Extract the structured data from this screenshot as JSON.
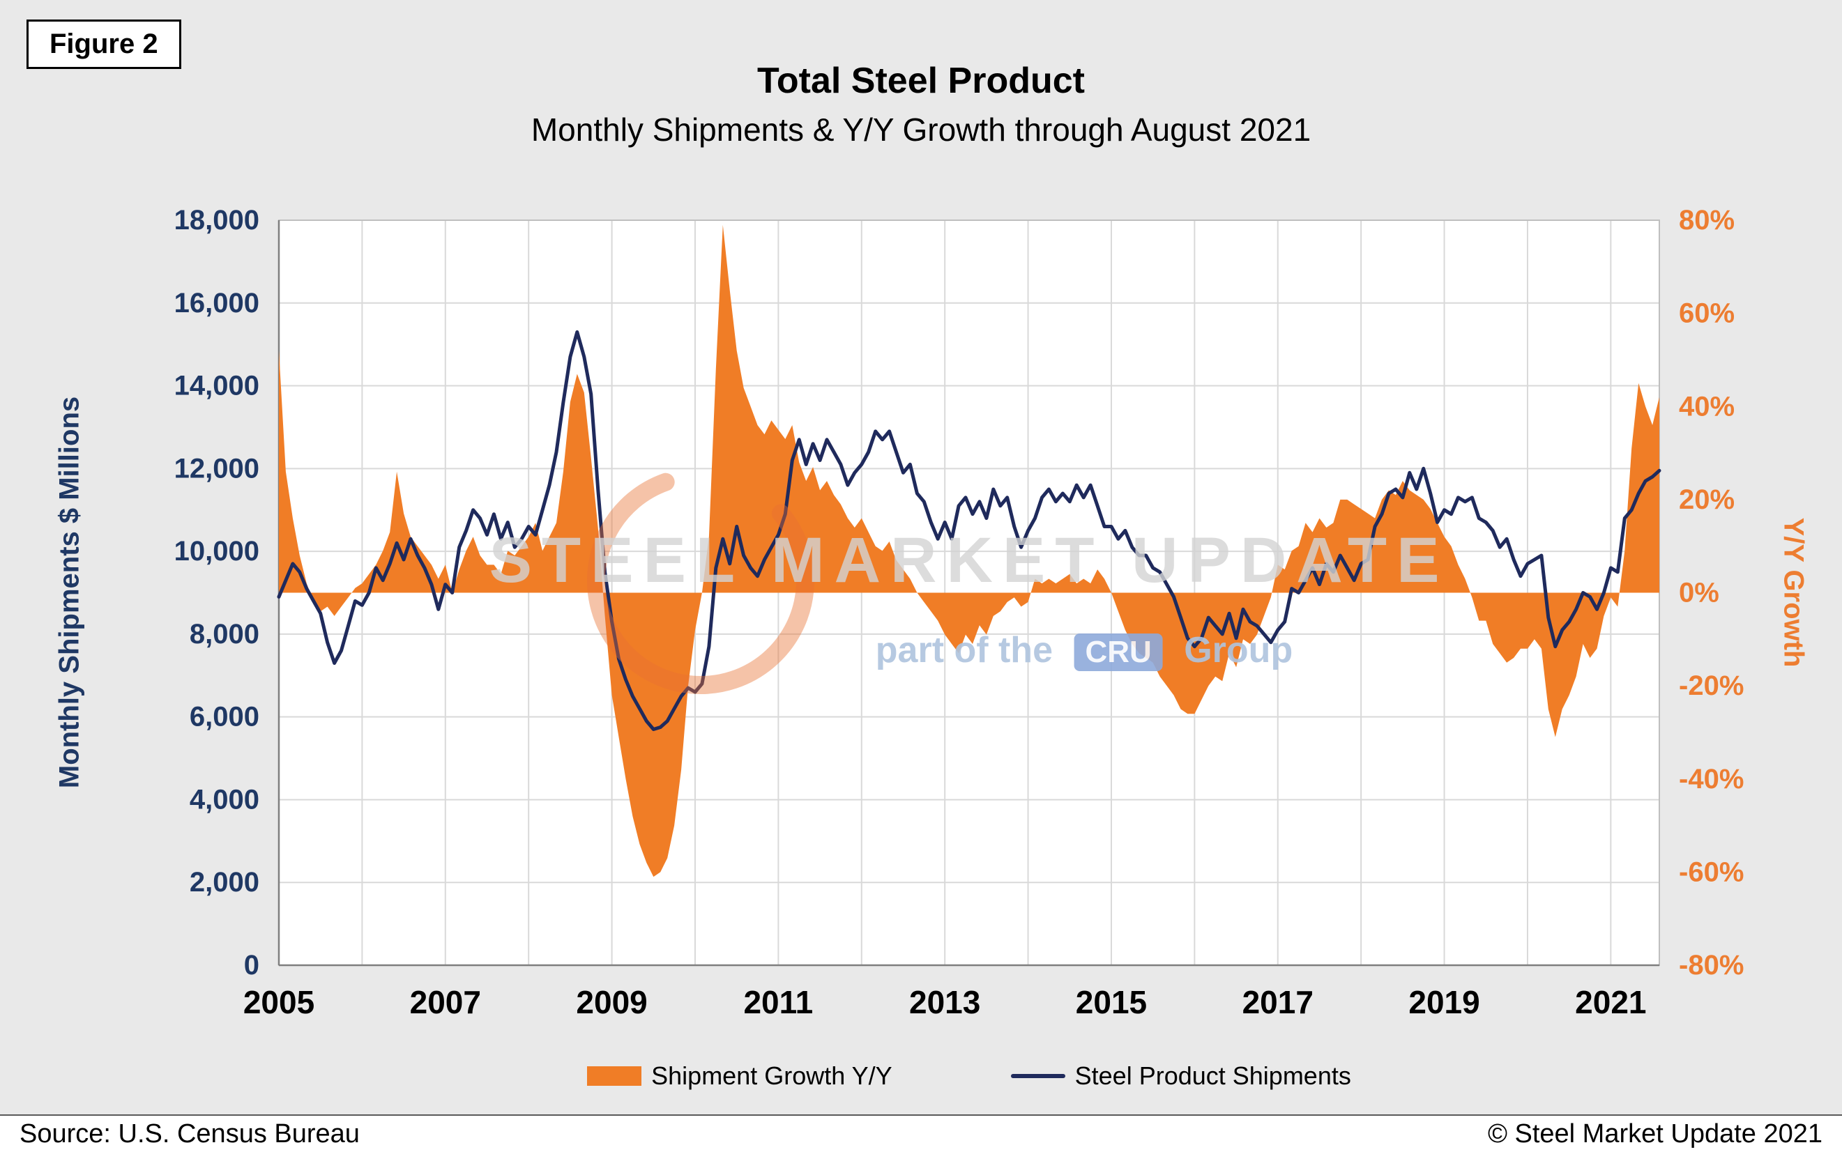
{
  "figure_label": "Figure 2",
  "header": {
    "title": "Total Steel Product",
    "subtitle": "Monthly Shipments & Y/Y Growth through August 2021"
  },
  "footer": {
    "source": "Source: U.S. Census Bureau",
    "copyright": "© Steel Market Update 2021"
  },
  "watermark": {
    "line1": "STEEL MARKET UPDATE",
    "line2_prefix": "part of the",
    "logo_text": "CRU",
    "line2_suffix": "Group"
  },
  "legend": [
    {
      "label": "Shipment Growth Y/Y"
    },
    {
      "label": "Steel Product Shipments"
    }
  ],
  "colors": {
    "orange": "#F07D26",
    "navy": "#1F2A5C",
    "axis_left_text": "#1F3864",
    "axis_right_text": "#ED7D31",
    "x_tick_text": "#000000",
    "grid": "#D9D9D9",
    "plot_border": "#BFBFBF",
    "axis_line": "#7F7F7F",
    "page_bg": "#E9E9E9",
    "plot_bg": "#FFFFFF"
  },
  "chart_data": {
    "type": "line",
    "title": "Total Steel Product",
    "subtitle": "Monthly Shipments & Y/Y Growth through August 2021",
    "x_start": "2005-01",
    "x_end": "2021-08",
    "x_tick_years": [
      2005,
      2007,
      2009,
      2011,
      2013,
      2015,
      2017,
      2019,
      2021
    ],
    "grid": "on",
    "legend_position": "bottom",
    "left_axis": {
      "label": "Monthly Shipments $ Millions",
      "min": 0,
      "max": 18000,
      "step": 2000
    },
    "right_axis": {
      "label": "Y/Y Growth",
      "min": -80,
      "max": 80,
      "step": 20,
      "unit": "%"
    },
    "series": [
      {
        "name": "Shipment Growth Y/Y",
        "type": "area",
        "axis": "right",
        "color": "#F07D26",
        "values": [
          52,
          26,
          16,
          8,
          2,
          -2,
          -4,
          -3,
          -5,
          -3,
          -1,
          1,
          2,
          4,
          6,
          9,
          13,
          26,
          17,
          12,
          10,
          8,
          6,
          3,
          6,
          0,
          5,
          9,
          12,
          8,
          6,
          6,
          4,
          9,
          8,
          10,
          12,
          15,
          9,
          12,
          15,
          26,
          41,
          47,
          43,
          29,
          14,
          -5,
          -22,
          -31,
          -40,
          -48,
          -54,
          -58,
          -61,
          -60,
          -57,
          -50,
          -38,
          -20,
          -8,
          0,
          12,
          48,
          79,
          65,
          52,
          44,
          40,
          36,
          34,
          37,
          35,
          33,
          36,
          28,
          24,
          27,
          22,
          24,
          21,
          19,
          16,
          14,
          16,
          13,
          10,
          9,
          11,
          7,
          5,
          3,
          0,
          -2,
          -4,
          -6,
          -9,
          -11,
          -13,
          -9,
          -11,
          -7,
          -9,
          -5,
          -4,
          -2,
          -1,
          -3,
          -2,
          3,
          2,
          3,
          2,
          3,
          4,
          2,
          3,
          2,
          5,
          3,
          0,
          -4,
          -8,
          -11,
          -13,
          -14,
          -15,
          -18,
          -20,
          -22,
          -25,
          -26,
          -26,
          -23,
          -20,
          -18,
          -19,
          -13,
          -16,
          -10,
          -11,
          -9,
          -5,
          -1,
          6,
          5,
          9,
          10,
          15,
          13,
          16,
          14,
          15,
          20,
          20,
          19,
          18,
          17,
          16,
          20,
          22,
          21,
          24,
          22,
          21,
          20,
          18,
          15,
          12,
          10,
          6,
          3,
          -1,
          -6,
          -6,
          -11,
          -13,
          -15,
          -14,
          -12,
          -12,
          -10,
          -12,
          -25,
          -31,
          -25,
          -22,
          -18,
          -11,
          -14,
          -12,
          -5,
          -1,
          -3,
          9,
          31,
          45,
          40,
          36,
          42
        ]
      },
      {
        "name": "Steel Product Shipments",
        "type": "line",
        "axis": "left",
        "color": "#1F2A5C",
        "values": [
          8900,
          9300,
          9700,
          9500,
          9100,
          8800,
          8500,
          7800,
          7300,
          7600,
          8200,
          8800,
          8700,
          9000,
          9600,
          9300,
          9700,
          10200,
          9800,
          10300,
          9900,
          9600,
          9200,
          8600,
          9200,
          9000,
          10100,
          10500,
          11000,
          10800,
          10400,
          10900,
          10300,
          10700,
          10100,
          10300,
          10600,
          10400,
          11000,
          11600,
          12400,
          13600,
          14700,
          15300,
          14700,
          13800,
          11500,
          9500,
          8300,
          7400,
          6900,
          6500,
          6200,
          5900,
          5700,
          5750,
          5900,
          6200,
          6500,
          6700,
          6600,
          6800,
          7700,
          9600,
          10300,
          9700,
          10600,
          9900,
          9600,
          9400,
          9800,
          10100,
          10400,
          10900,
          12200,
          12700,
          12100,
          12600,
          12200,
          12700,
          12400,
          12100,
          11600,
          11900,
          12100,
          12400,
          12900,
          12700,
          12900,
          12400,
          11900,
          12100,
          11400,
          11200,
          10700,
          10300,
          10700,
          10300,
          11100,
          11300,
          10900,
          11200,
          10800,
          11500,
          11100,
          11300,
          10600,
          10100,
          10500,
          10800,
          11300,
          11500,
          11200,
          11400,
          11200,
          11600,
          11300,
          11600,
          11100,
          10600,
          10600,
          10300,
          10500,
          10100,
          9900,
          9900,
          9600,
          9500,
          9200,
          8900,
          8400,
          7900,
          7700,
          7900,
          8400,
          8200,
          8000,
          8500,
          7900,
          8600,
          8300,
          8200,
          8000,
          7800,
          8100,
          8300,
          9100,
          9000,
          9300,
          9600,
          9200,
          9700,
          9500,
          9900,
          9600,
          9300,
          9700,
          9800,
          10600,
          10900,
          11400,
          11500,
          11300,
          11900,
          11500,
          12000,
          11400,
          10700,
          11000,
          10900,
          11300,
          11200,
          11300,
          10800,
          10700,
          10500,
          10100,
          10300,
          9800,
          9400,
          9700,
          9800,
          9900,
          8400,
          7700,
          8100,
          8300,
          8600,
          9000,
          8900,
          8600,
          9000,
          9600,
          9500,
          10800,
          11000,
          11400,
          11700,
          11800,
          11950
        ]
      }
    ]
  }
}
